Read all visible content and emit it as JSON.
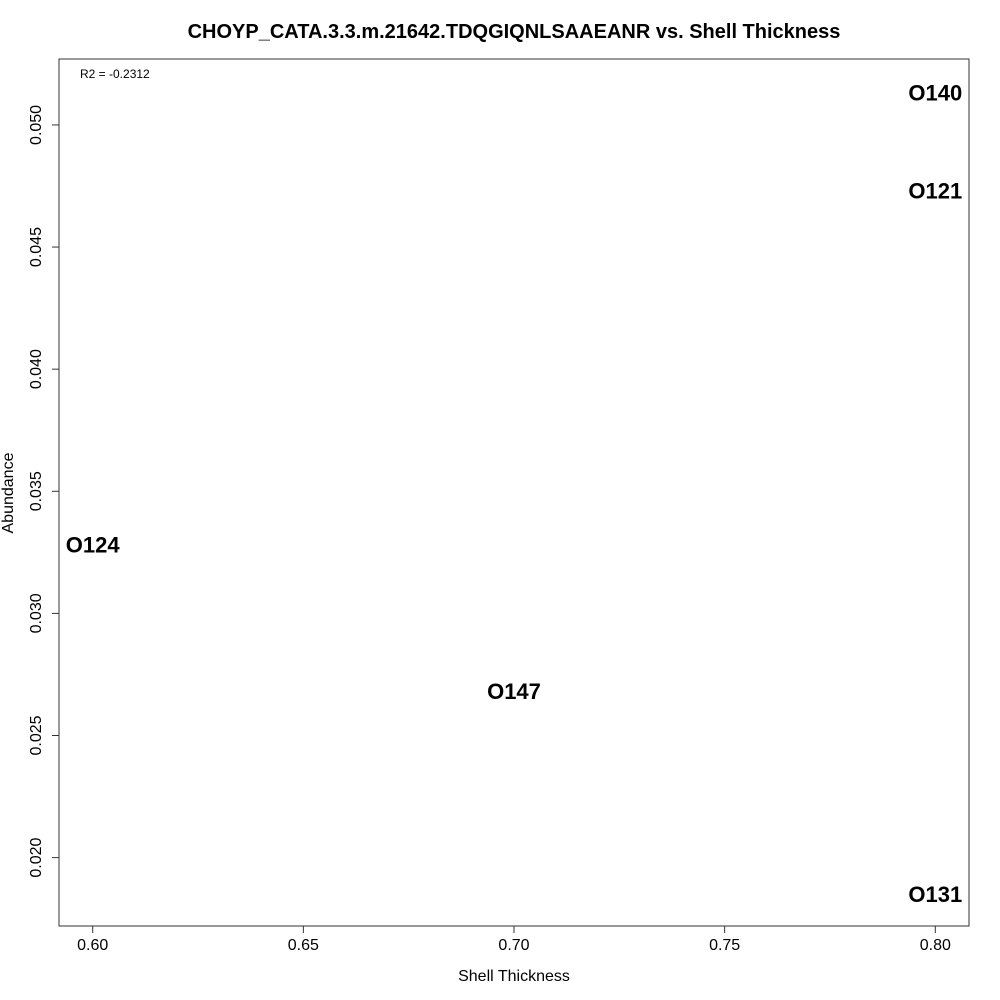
{
  "chart_data": {
    "type": "scatter",
    "title": "CHOYP_CATA.3.3.m.21642.TDQGIQNLSAAEANR vs. Shell Thickness",
    "xlabel": "Shell Thickness",
    "ylabel": "Abundance",
    "xlim": [
      0.592,
      0.808
    ],
    "ylim": [
      0.0172,
      0.0527
    ],
    "x_ticks": [
      0.6,
      0.65,
      0.7,
      0.75,
      0.8
    ],
    "x_tick_labels": [
      "0.60",
      "0.65",
      "0.70",
      "0.75",
      "0.80"
    ],
    "y_ticks": [
      0.02,
      0.025,
      0.03,
      0.035,
      0.04,
      0.045,
      0.05
    ],
    "y_tick_labels": [
      "0.020",
      "0.025",
      "0.030",
      "0.035",
      "0.040",
      "0.045",
      "0.050"
    ],
    "annotation": "R2 = -0.2312",
    "grid": false,
    "points": [
      {
        "label": "O140",
        "x": 0.8,
        "y": 0.0513
      },
      {
        "label": "O121",
        "x": 0.8,
        "y": 0.0473
      },
      {
        "label": "O124",
        "x": 0.6,
        "y": 0.0328
      },
      {
        "label": "O147",
        "x": 0.7,
        "y": 0.0268
      },
      {
        "label": "O131",
        "x": 0.8,
        "y": 0.0185
      }
    ]
  }
}
